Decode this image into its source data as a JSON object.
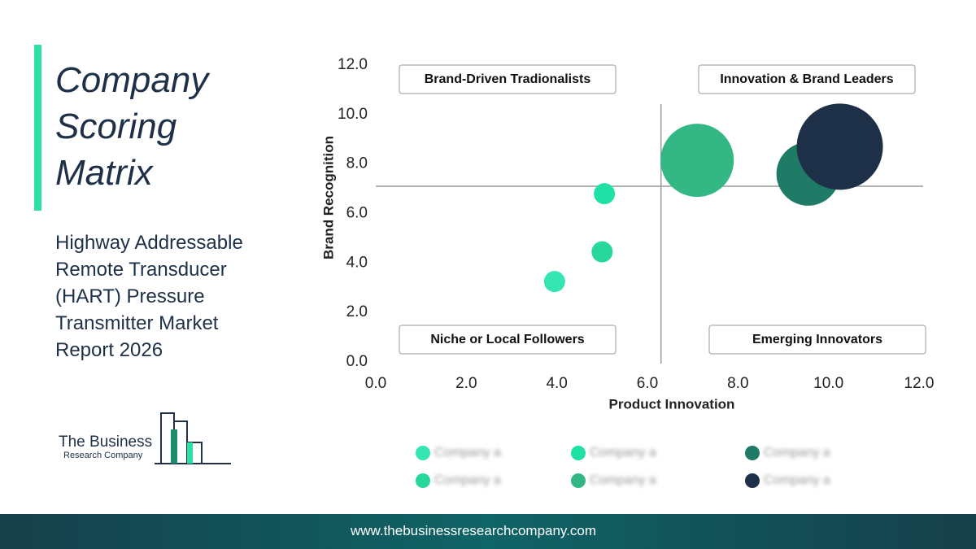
{
  "header": {
    "title": "Company Scoring Matrix",
    "subtitle": "Highway Addressable Remote Transducer (HART) Pressure Transmitter Market Report 2026"
  },
  "logo": {
    "line1": "The Business",
    "line2": "Research Company"
  },
  "footer": {
    "url": "www.thebusinessresearchcompany.com"
  },
  "chart_data": {
    "type": "bubble",
    "x_label": "Product Innovation",
    "y_label": "Brand Recognition",
    "xlim": [
      0,
      12
    ],
    "ylim": [
      0,
      12
    ],
    "xticks": [
      {
        "value": 0,
        "label": "0.0"
      },
      {
        "value": 2,
        "label": "2.0"
      },
      {
        "value": 4,
        "label": "4.0"
      },
      {
        "value": 6,
        "label": "6.0"
      },
      {
        "value": 8,
        "label": "8.0"
      },
      {
        "value": 10,
        "label": "10.0"
      },
      {
        "value": 12,
        "label": "12.0"
      }
    ],
    "yticks": [
      {
        "value": 0,
        "label": "0.0"
      },
      {
        "value": 2,
        "label": "2.0"
      },
      {
        "value": 4,
        "label": "4.0"
      },
      {
        "value": 6,
        "label": "6.0"
      },
      {
        "value": 8,
        "label": "8.0"
      },
      {
        "value": 10,
        "label": "10.0"
      },
      {
        "value": 12,
        "label": "12.0"
      }
    ],
    "x_divider": 6.3,
    "y_divider": 7.1,
    "quadrant_labels": [
      "Brand-Driven Tradionalists",
      "Innovation & Brand Leaders",
      "Niche or Local Followers",
      "Emerging Innovators"
    ],
    "series": [
      {
        "name": "Company a",
        "color": "#35e6b3",
        "x": [
          3.95
        ],
        "values": [
          3.25
        ],
        "sizes": [
          13
        ]
      },
      {
        "name": "Company a",
        "color": "#1fe0a5",
        "x": [
          5.05
        ],
        "values": [
          6.8
        ],
        "sizes": [
          13
        ]
      },
      {
        "name": "Company a",
        "color": "#1f7a66",
        "x": [
          9.55
        ],
        "values": [
          7.6
        ],
        "sizes": [
          39
        ]
      },
      {
        "name": "Company a",
        "color": "#28d79c",
        "x": [
          5.0
        ],
        "values": [
          4.45
        ],
        "sizes": [
          13
        ]
      },
      {
        "name": "Company a",
        "color": "#33b784",
        "x": [
          7.1
        ],
        "values": [
          8.15
        ],
        "sizes": [
          45
        ]
      },
      {
        "name": "Company a",
        "color": "#1e3048",
        "x": [
          10.25
        ],
        "values": [
          8.7
        ],
        "sizes": [
          53
        ]
      }
    ]
  }
}
